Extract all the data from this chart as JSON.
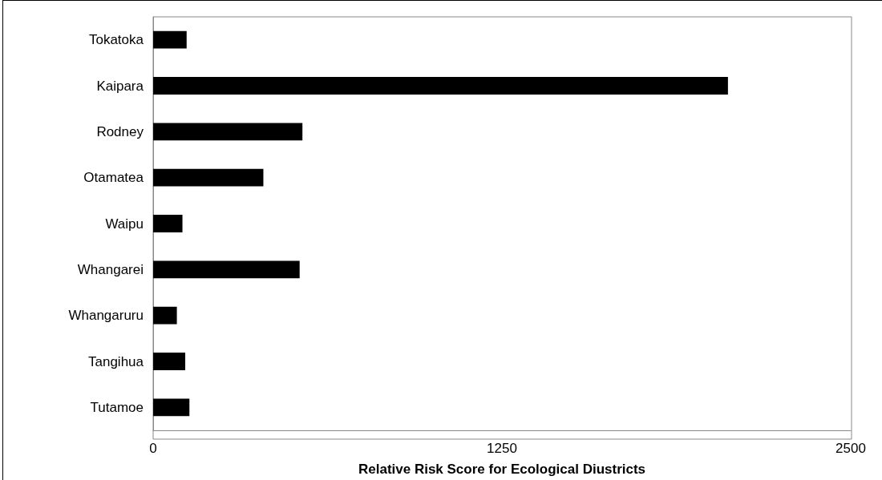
{
  "chart_data": {
    "type": "bar",
    "orientation": "horizontal",
    "xlabel": "Relative Risk Score for Ecological Diustricts",
    "categories": [
      "Tokatoka",
      "Kaipara",
      "Rodney",
      "Otamatea",
      "Waipu",
      "Whangarei",
      "Whangaruru",
      "Tangihua",
      "Tutamoe"
    ],
    "values": [
      120,
      2060,
      535,
      395,
      105,
      525,
      85,
      115,
      130
    ],
    "color": "#000000",
    "xlim": [
      0,
      2500
    ],
    "xticks": [
      0,
      1250,
      2500
    ],
    "grid": false
  }
}
